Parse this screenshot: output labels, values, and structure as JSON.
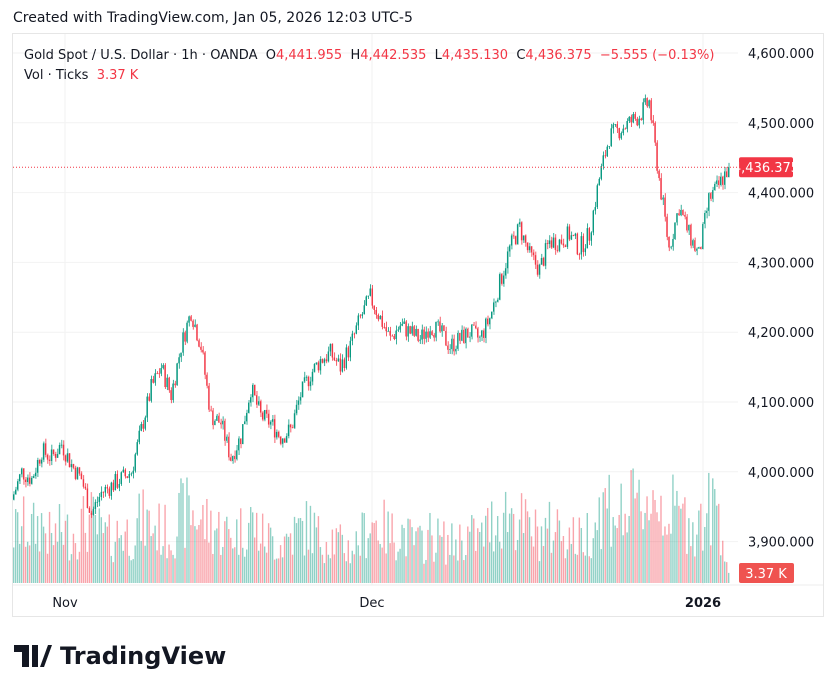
{
  "credit": "Created with TradingView.com, Jan 05, 2026 12:03 UTC-5",
  "legend": {
    "symbol": "Gold Spot / U.S. Dollar · 1h · OANDA",
    "o_label": "O",
    "o": "4,441.955",
    "h_label": "H",
    "h": "4,442.535",
    "l_label": "L",
    "l": "4,435.130",
    "c_label": "C",
    "c": "4,436.375",
    "change": "−5.555 (−0.13%)",
    "vol_label": "Vol · Ticks",
    "vol": "3.37 K"
  },
  "logo": "TradingView",
  "colors": {
    "up": "#089981",
    "down": "#f23645"
  },
  "chart_data": {
    "type": "candlestick",
    "y_ticks": [
      "4,600.000",
      "4,500.000",
      "4,400.000",
      "4,300.000",
      "4,200.000",
      "4,100.000",
      "4,000.000",
      "3,900.000"
    ],
    "y_tick_values": [
      4600,
      4500,
      4400,
      4300,
      4200,
      4100,
      4000,
      3900
    ],
    "ylim": [
      3840,
      4640
    ],
    "x_ticks": [
      "Nov",
      "Dec",
      "2026"
    ],
    "last_price_label": "4,436.375",
    "last_volume_label": "3.37 K",
    "grid": true,
    "approx_closes": [
      3960,
      4000,
      3990,
      4030,
      4020,
      4040,
      4010,
      3990,
      3940,
      3970,
      3980,
      3990,
      4000,
      4060,
      4120,
      4150,
      4110,
      4180,
      4230,
      4180,
      4080,
      4070,
      4020,
      4050,
      4120,
      4080,
      4070,
      4050,
      4060,
      4110,
      4140,
      4160,
      4170,
      4150,
      4180,
      4220,
      4250,
      4220,
      4190,
      4210,
      4200,
      4190,
      4210,
      4200,
      4180,
      4190,
      4200,
      4190,
      4220,
      4270,
      4320,
      4350,
      4310,
      4290,
      4330,
      4330,
      4340,
      4320,
      4340,
      4420,
      4480,
      4490,
      4500,
      4510,
      4530,
      4420,
      4320,
      4380,
      4340,
      4310,
      4390,
      4410,
      4436.375
    ],
    "approx_volume_k": [
      20,
      24,
      22,
      25,
      18,
      22,
      20,
      24,
      26,
      20,
      18,
      22,
      20,
      26,
      24,
      22,
      20,
      28,
      30,
      26,
      24,
      22,
      20,
      22,
      26,
      20,
      18,
      16,
      20,
      22,
      24,
      18,
      20,
      16,
      14,
      18,
      26,
      24,
      20,
      22,
      18,
      16,
      20,
      18,
      16,
      18,
      20,
      18,
      24,
      28,
      30,
      26,
      22,
      20,
      22,
      24,
      20,
      18,
      22,
      30,
      34,
      28,
      30,
      32,
      36,
      34,
      30,
      28,
      26,
      24,
      30,
      32,
      3.37
    ]
  }
}
